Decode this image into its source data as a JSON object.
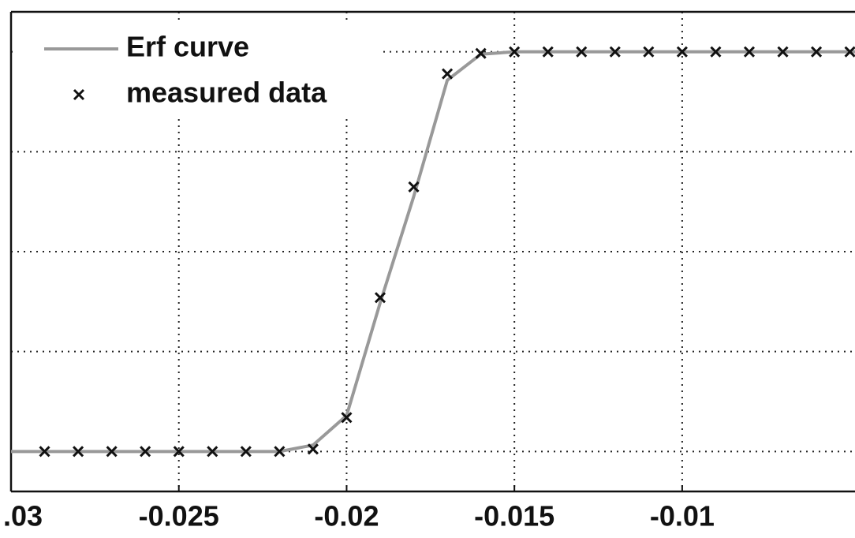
{
  "chart_data": {
    "type": "line",
    "x": [
      -0.029,
      -0.028,
      -0.027,
      -0.026,
      -0.025,
      -0.024,
      -0.023,
      -0.022,
      -0.021,
      -0.02,
      -0.019,
      -0.018,
      -0.017,
      -0.016,
      -0.015,
      -0.014,
      -0.013,
      -0.012,
      -0.011,
      -0.01,
      -0.009,
      -0.008,
      -0.007,
      -0.006,
      -0.005
    ],
    "series": [
      {
        "name": "Erf curve",
        "color": "#999999",
        "style": "line",
        "x": [
          -0.03,
          -0.022,
          -0.021,
          -0.02,
          -0.019,
          -0.018,
          -0.017,
          -0.016,
          -0.015,
          -0.00485
        ],
        "values": [
          0,
          0,
          0.016,
          0.09,
          0.372,
          0.638,
          0.929,
          0.994,
          1,
          1
        ]
      },
      {
        "name": "measured data",
        "color": "#111111",
        "style": "marker",
        "values": [
          0,
          0,
          0,
          0,
          0,
          0,
          0,
          0,
          0.006,
          0.085,
          0.385,
          0.662,
          0.945,
          0.996,
          1,
          1,
          1,
          1,
          1,
          1,
          1,
          1,
          1,
          1,
          1
        ]
      }
    ],
    "xlim": [
      -0.03,
      -0.00485
    ],
    "ylim": [
      -0.1,
      1.1
    ],
    "xticks": [
      {
        "value": -0.03,
        "label": ".03"
      },
      -0.025,
      -0.02,
      -0.015,
      -0.01
    ],
    "yticks": [
      0,
      0.25,
      0.5,
      0.75,
      1
    ],
    "grid": true,
    "legend": "top-left"
  }
}
